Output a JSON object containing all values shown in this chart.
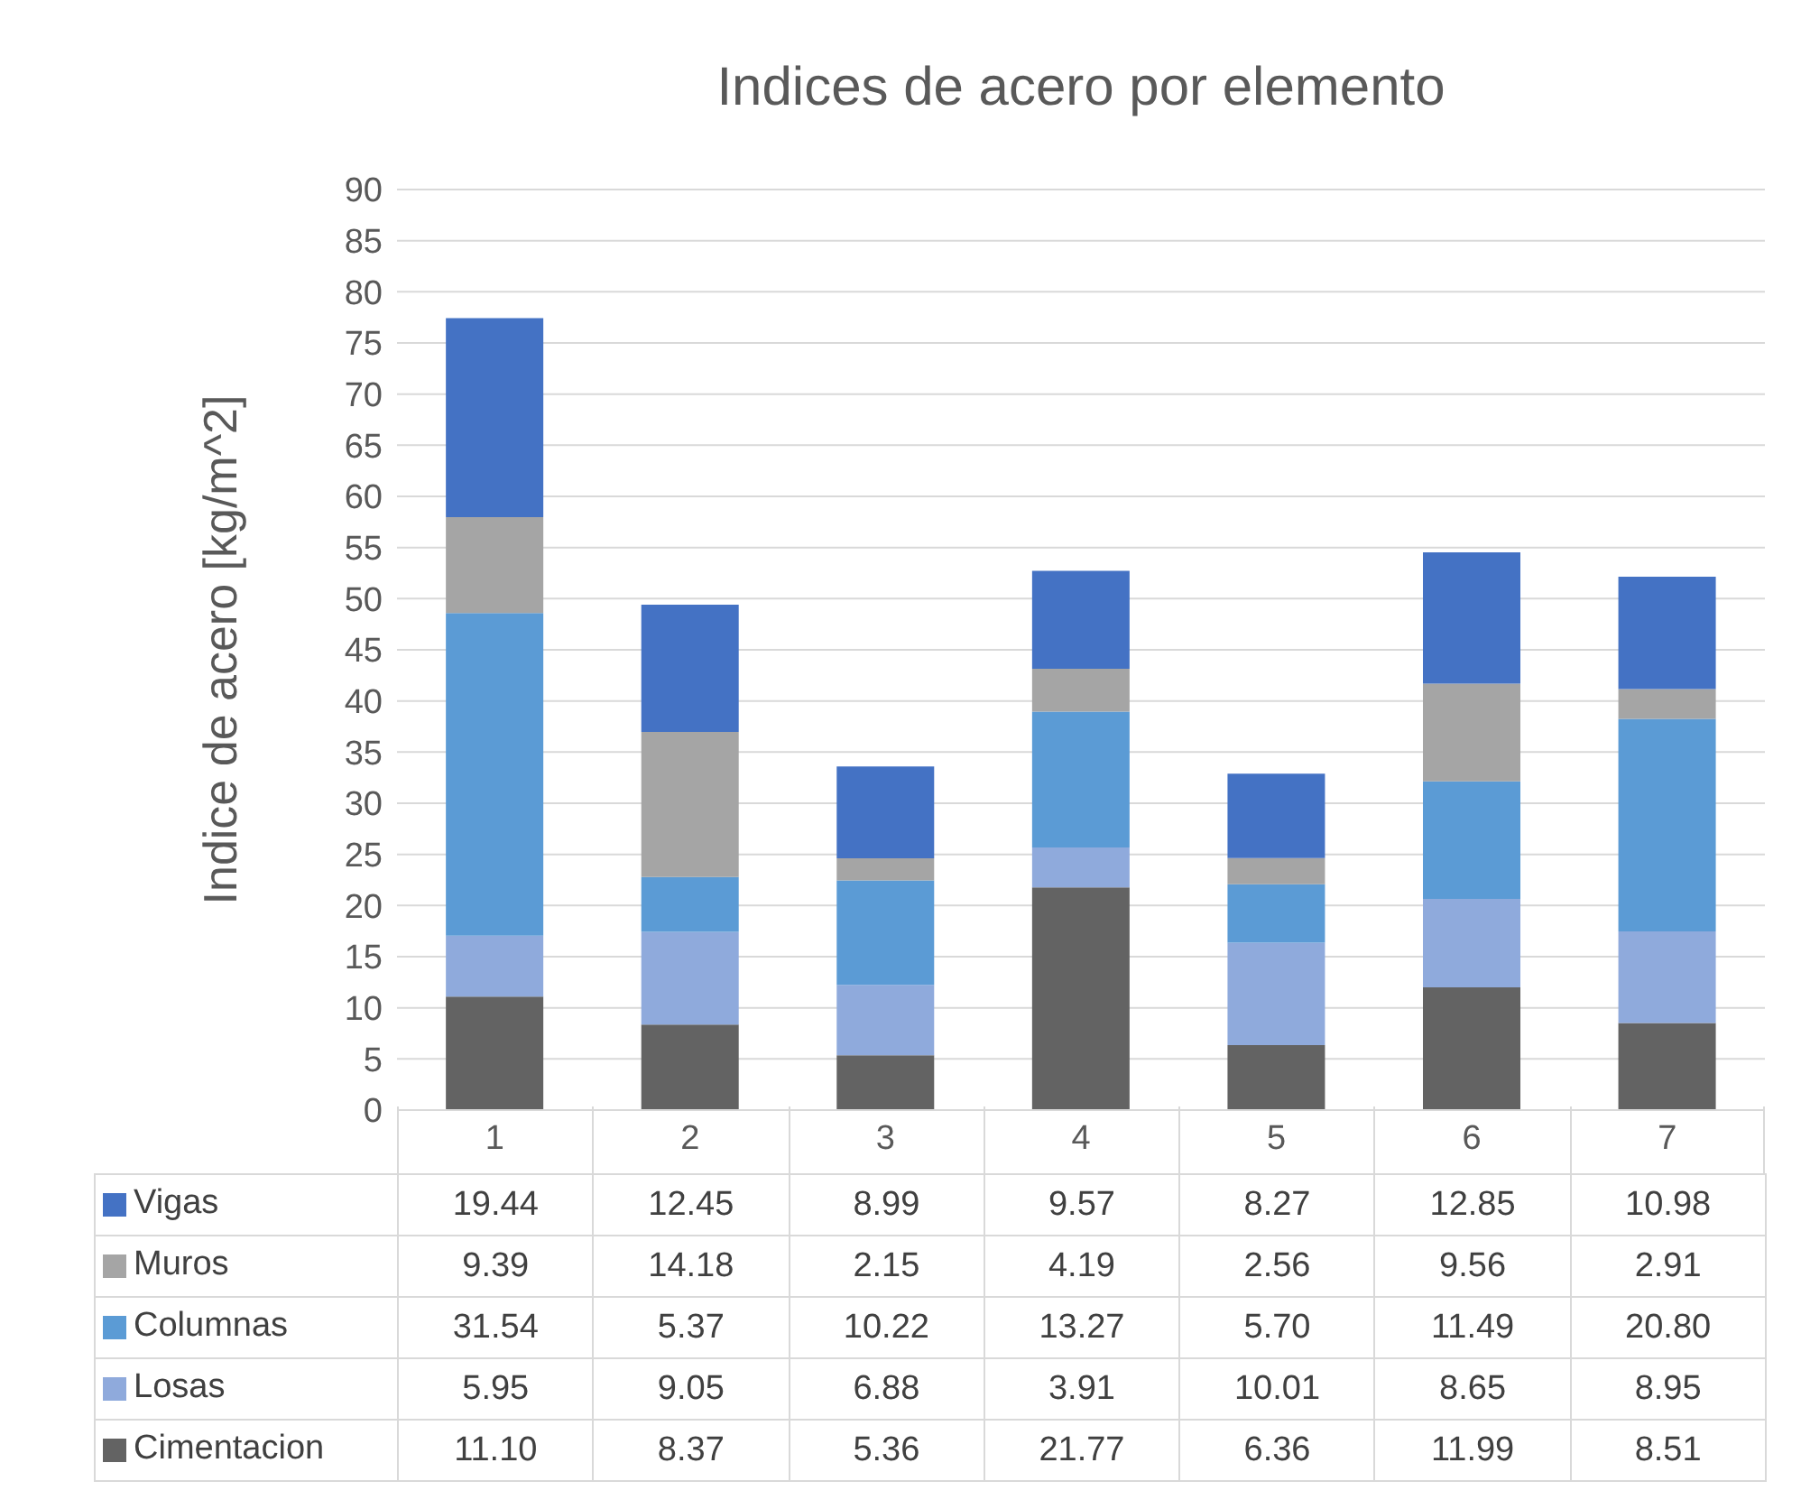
{
  "chart_data": {
    "type": "bar",
    "stacked": true,
    "title": "Indices de acero por elemento",
    "ylabel": "Indice de acero [kg/m^2]",
    "categories": [
      "1",
      "2",
      "3",
      "4",
      "5",
      "6",
      "7"
    ],
    "ylim": [
      0,
      90
    ],
    "yticks": [
      0,
      5,
      10,
      15,
      20,
      25,
      30,
      35,
      40,
      45,
      50,
      55,
      60,
      65,
      70,
      75,
      80,
      85,
      90
    ],
    "grid": "y",
    "legend": "bottom",
    "series": [
      {
        "name": "Cimentacion",
        "color": "#636363",
        "values": [
          11.1,
          8.37,
          5.36,
          21.77,
          6.36,
          11.99,
          8.51
        ],
        "value_labels": [
          "11.10",
          "8.37",
          "5.36",
          "21.77",
          "6.36",
          "11.99",
          "8.51"
        ]
      },
      {
        "name": "Losas",
        "color": "#8faadc",
        "values": [
          5.95,
          9.05,
          6.88,
          3.91,
          10.01,
          8.65,
          8.95
        ],
        "value_labels": [
          "5.95",
          "9.05",
          "6.88",
          "3.91",
          "10.01",
          "8.65",
          "8.95"
        ]
      },
      {
        "name": "Columnas",
        "color": "#5b9bd5",
        "values": [
          31.54,
          5.37,
          10.22,
          13.27,
          5.7,
          11.49,
          20.8
        ],
        "value_labels": [
          "31.54",
          "5.37",
          "10.22",
          "13.27",
          "5.70",
          "11.49",
          "20.80"
        ]
      },
      {
        "name": "Muros",
        "color": "#a5a5a5",
        "values": [
          9.39,
          14.18,
          2.15,
          4.19,
          2.56,
          9.56,
          2.91
        ],
        "value_labels": [
          "9.39",
          "14.18",
          "2.15",
          "4.19",
          "2.56",
          "9.56",
          "2.91"
        ]
      },
      {
        "name": "Vigas",
        "color": "#4472c4",
        "values": [
          19.44,
          12.45,
          8.99,
          9.57,
          8.27,
          12.85,
          10.98
        ],
        "value_labels": [
          "19.44",
          "12.45",
          "8.99",
          "9.57",
          "8.27",
          "12.85",
          "10.98"
        ]
      }
    ]
  }
}
